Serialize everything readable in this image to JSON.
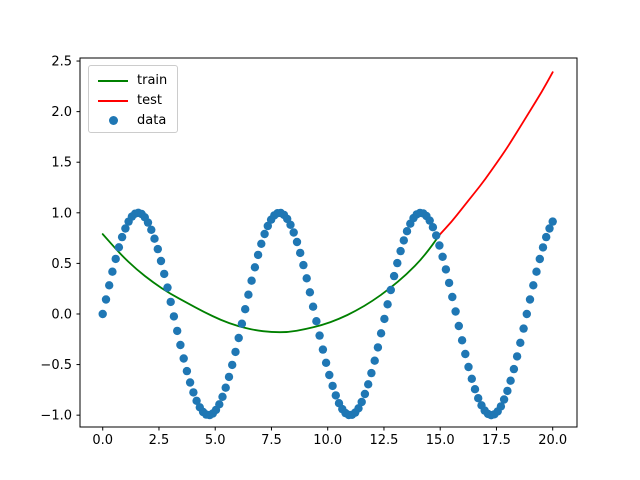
{
  "figure": {
    "background": "#ffffff",
    "frame_color": "#000000",
    "tick_label_color": "#000000",
    "tick_font_size_px": 13
  },
  "legend": {
    "position": "upper left",
    "entries": [
      {
        "label": "train",
        "marker": "line",
        "color": "#008000"
      },
      {
        "label": "test",
        "marker": "line",
        "color": "#ff0000"
      },
      {
        "label": "data",
        "marker": "dot",
        "color": "#1f77b4"
      }
    ]
  },
  "chart_data": {
    "type": "line+scatter",
    "title": "",
    "xlabel": "",
    "ylabel": "",
    "grid": false,
    "xlim": [
      -1.01,
      21.08
    ],
    "ylim": [
      -1.117,
      2.53
    ],
    "x_ticks": {
      "values": [
        0,
        2.5,
        5,
        7.5,
        10,
        12.5,
        15,
        17.5,
        20
      ],
      "labels": [
        "0.0",
        "2.5",
        "5.0",
        "7.5",
        "10.0",
        "12.5",
        "15.0",
        "17.5",
        "20.0"
      ]
    },
    "y_ticks": {
      "values": [
        2.5,
        2.0,
        1.5,
        1.0,
        0.5,
        0.0,
        -0.5,
        -1.0
      ],
      "labels": [
        "2.5",
        "2.0",
        "1.5",
        "1.0",
        "0.5",
        "0.0",
        "−0.5",
        "−1.0"
      ]
    },
    "series": [
      {
        "name": "train",
        "type": "line",
        "color": "#008000",
        "line_width": 1.8,
        "points": [
          [
            0,
            0.79
          ],
          [
            0.75,
            0.6
          ],
          [
            1.5,
            0.44
          ],
          [
            2.25,
            0.31
          ],
          [
            3,
            0.2
          ],
          [
            3.75,
            0.11
          ],
          [
            4.5,
            0.02
          ],
          [
            5.25,
            -0.06
          ],
          [
            6,
            -0.12
          ],
          [
            6.75,
            -0.16
          ],
          [
            7.5,
            -0.18
          ],
          [
            8.25,
            -0.18
          ],
          [
            9,
            -0.15
          ],
          [
            9.75,
            -0.11
          ],
          [
            10.5,
            -0.05
          ],
          [
            11.25,
            0.03
          ],
          [
            12,
            0.13
          ],
          [
            12.75,
            0.25
          ],
          [
            13.5,
            0.39
          ],
          [
            14.25,
            0.56
          ],
          [
            15,
            0.79
          ]
        ]
      },
      {
        "name": "test",
        "type": "line",
        "color": "#ff0000",
        "line_width": 1.8,
        "points": [
          [
            15,
            0.79
          ],
          [
            15.5,
            0.91
          ],
          [
            16,
            1.05
          ],
          [
            16.5,
            1.19
          ],
          [
            17,
            1.33
          ],
          [
            17.5,
            1.49
          ],
          [
            18,
            1.65
          ],
          [
            18.5,
            1.83
          ],
          [
            19,
            2.01
          ],
          [
            19.5,
            2.19
          ],
          [
            20,
            2.39
          ]
        ]
      },
      {
        "name": "data",
        "type": "scatter",
        "color": "#1f77b4",
        "marker_radius_px": 4.2,
        "formula": "sin(x)",
        "x_min": 0,
        "x_max": 20,
        "n_points": 140
      }
    ]
  }
}
